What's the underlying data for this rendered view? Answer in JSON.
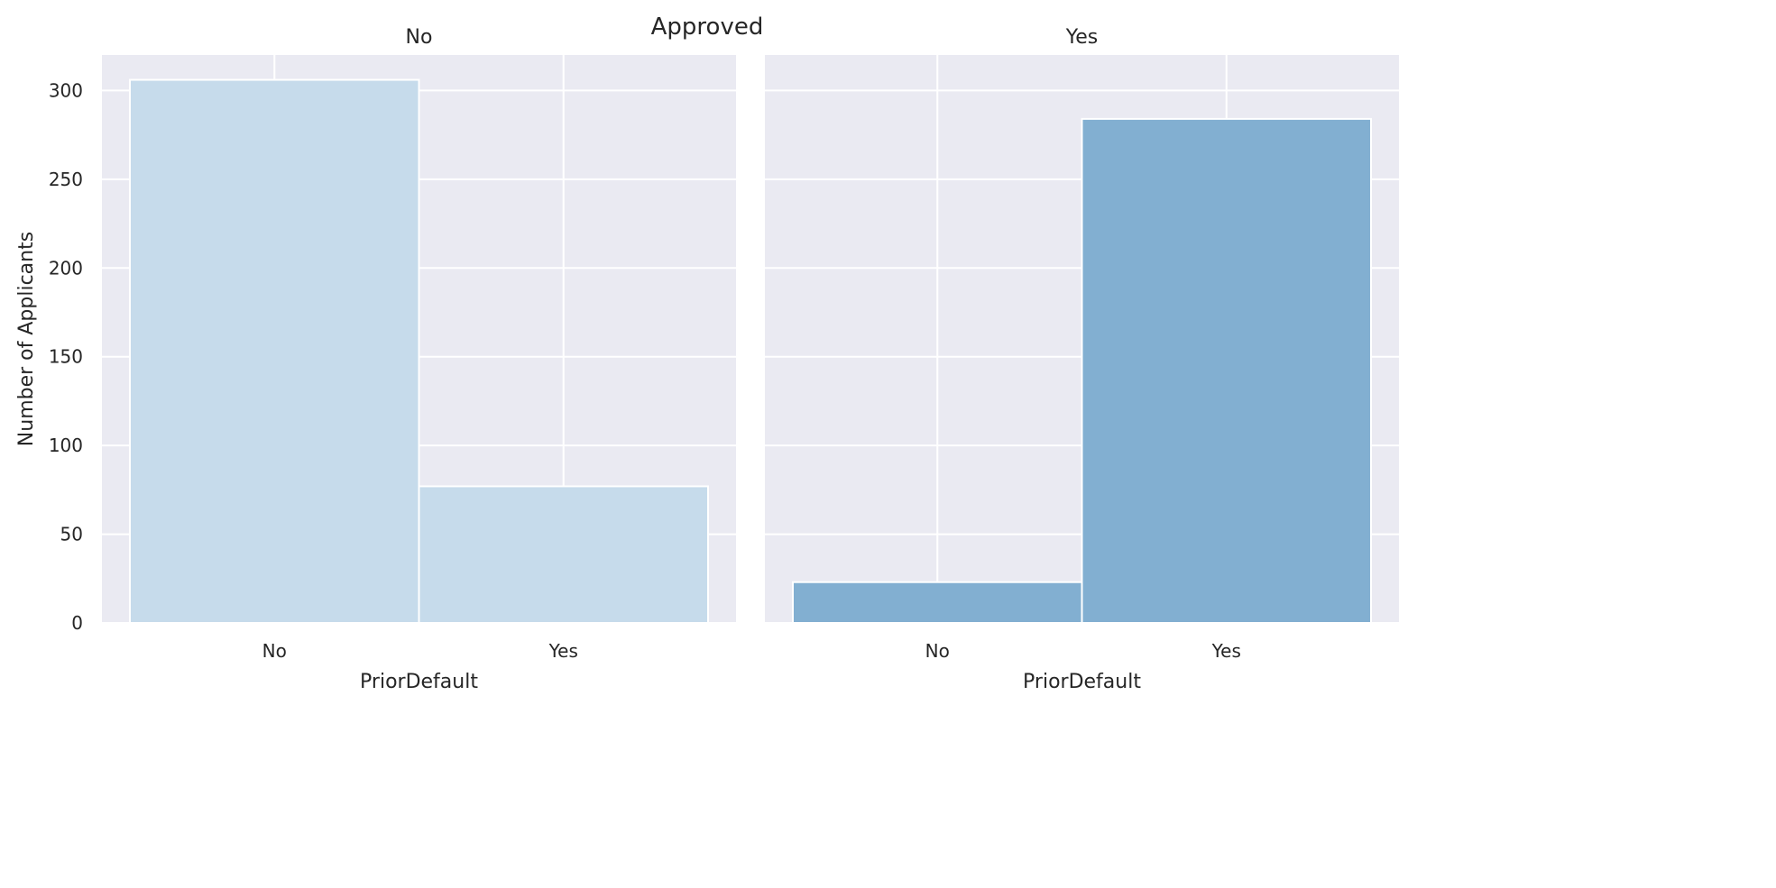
{
  "chart_data": {
    "type": "bar",
    "title": "Approved",
    "xlabel": "PriorDefault",
    "ylabel": "Number of Applicants",
    "ylim": [
      0,
      320
    ],
    "yticks": [
      0,
      50,
      100,
      150,
      200,
      250,
      300
    ],
    "grid": true,
    "categories": [
      "No",
      "Yes"
    ],
    "panels": [
      {
        "title": "No",
        "values": [
          306,
          77
        ],
        "color": "#c6dbeb"
      },
      {
        "title": "Yes",
        "values": [
          23,
          284
        ],
        "color": "#82afd1"
      }
    ]
  }
}
